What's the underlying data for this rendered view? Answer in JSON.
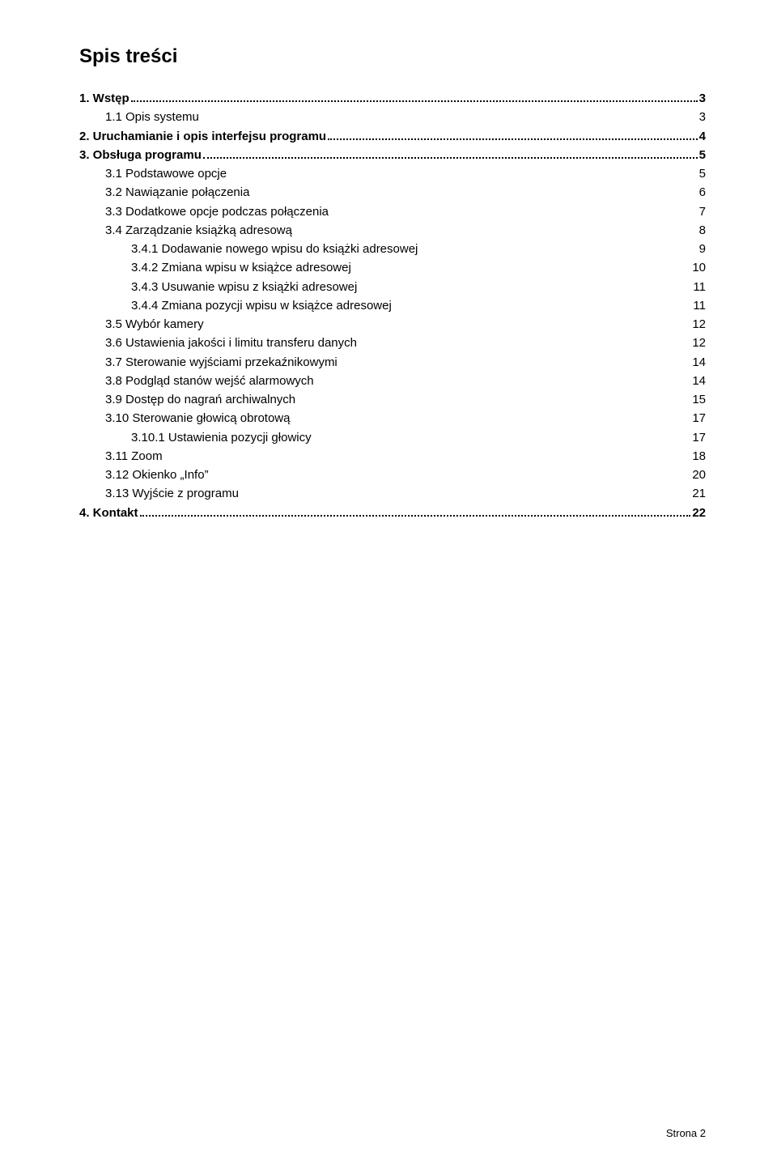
{
  "title": "Spis treści",
  "footer": "Strona 2",
  "toc": [
    {
      "label": "1. Wstęp",
      "page": "3",
      "level": 1,
      "bold": true,
      "dotted": true
    },
    {
      "label": "1.1 Opis systemu",
      "page": "3",
      "level": 2,
      "bold": false,
      "dotted": false
    },
    {
      "label": "2. Uruchamianie i opis interfejsu programu",
      "page": "4",
      "level": 1,
      "bold": true,
      "dotted": true
    },
    {
      "label": "3. Obsługa programu",
      "page": "5",
      "level": 1,
      "bold": true,
      "dotted": true
    },
    {
      "label": "3.1 Podstawowe opcje",
      "page": "5",
      "level": 2,
      "bold": false,
      "dotted": false
    },
    {
      "label": "3.2 Nawiązanie połączenia",
      "page": "6",
      "level": 2,
      "bold": false,
      "dotted": false
    },
    {
      "label": "3.3 Dodatkowe opcje podczas połączenia",
      "page": "7",
      "level": 2,
      "bold": false,
      "dotted": false
    },
    {
      "label": "3.4 Zarządzanie książką adresową",
      "page": "8",
      "level": 2,
      "bold": false,
      "dotted": false
    },
    {
      "label": "3.4.1 Dodawanie nowego wpisu do książki adresowej",
      "page": "9",
      "level": 3,
      "bold": false,
      "dotted": false
    },
    {
      "label": "3.4.2 Zmiana wpisu w książce adresowej",
      "page": "10",
      "level": 3,
      "bold": false,
      "dotted": false
    },
    {
      "label": "3.4.3 Usuwanie wpisu z książki adresowej",
      "page": "11",
      "level": 3,
      "bold": false,
      "dotted": false
    },
    {
      "label": "3.4.4 Zmiana pozycji wpisu w książce adresowej",
      "page": "11",
      "level": 3,
      "bold": false,
      "dotted": false
    },
    {
      "label": "3.5 Wybór kamery",
      "page": "12",
      "level": 2,
      "bold": false,
      "dotted": false
    },
    {
      "label": "3.6 Ustawienia jakości i limitu transferu danych",
      "page": "12",
      "level": 2,
      "bold": false,
      "dotted": false
    },
    {
      "label": "3.7 Sterowanie wyjściami przekaźnikowymi",
      "page": "14",
      "level": 2,
      "bold": false,
      "dotted": false
    },
    {
      "label": "3.8 Podgląd stanów wejść alarmowych",
      "page": "14",
      "level": 2,
      "bold": false,
      "dotted": false
    },
    {
      "label": "3.9 Dostęp do nagrań archiwalnych",
      "page": "15",
      "level": 2,
      "bold": false,
      "dotted": false
    },
    {
      "label": "3.10 Sterowanie głowicą obrotową",
      "page": "17",
      "level": 2,
      "bold": false,
      "dotted": false
    },
    {
      "label": "3.10.1 Ustawienia pozycji głowicy",
      "page": "17",
      "level": 3,
      "bold": false,
      "dotted": false
    },
    {
      "label": "3.11 Zoom",
      "page": "18",
      "level": 2,
      "bold": false,
      "dotted": false
    },
    {
      "label": "3.12 Okienko „Info”",
      "page": "20",
      "level": 2,
      "bold": false,
      "dotted": false
    },
    {
      "label": "3.13 Wyjście z programu",
      "page": "21",
      "level": 2,
      "bold": false,
      "dotted": false
    },
    {
      "label": "4. Kontakt",
      "page": "22",
      "level": 1,
      "bold": true,
      "dotted": true
    }
  ]
}
